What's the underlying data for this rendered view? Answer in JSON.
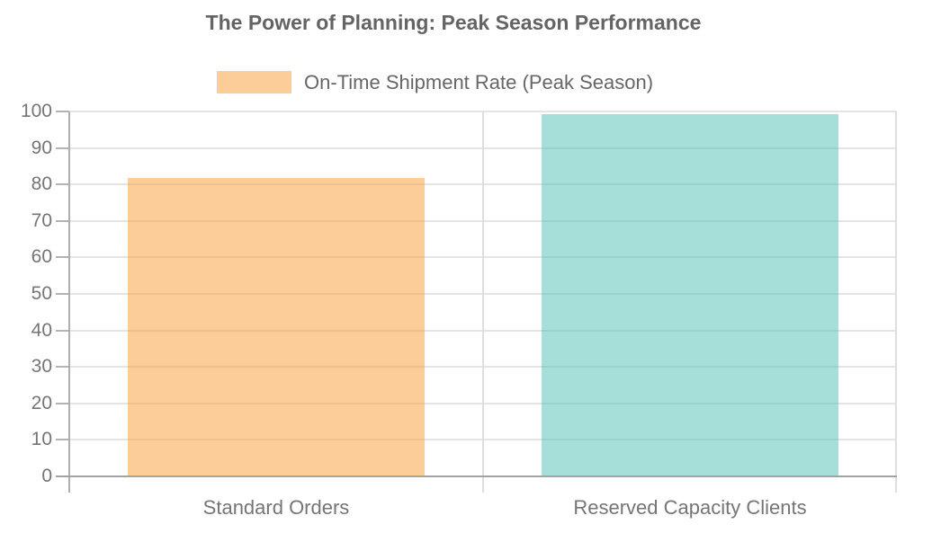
{
  "chart_data": {
    "type": "bar",
    "title": "The Power of Planning: Peak Season Performance",
    "categories": [
      "Standard Orders",
      "Reserved Capacity Clients"
    ],
    "series": [
      {
        "name": "On-Time Shipment Rate (Peak Season)",
        "values": [
          82,
          99.5
        ]
      }
    ],
    "xlabel": "",
    "ylabel": "",
    "ylim": [
      0,
      100
    ],
    "yticks": [
      0,
      10,
      20,
      30,
      40,
      50,
      60,
      70,
      80,
      90,
      100
    ],
    "grid": true,
    "legend_position": "top",
    "bar_colors": [
      "rgba(249,153,51,0.5)",
      "rgba(77,191,181,0.5)"
    ]
  },
  "legend": {
    "label": "On-Time Shipment Rate (Peak Season)",
    "swatch_color": "#fccc99"
  },
  "colors": {
    "grid": "#e4e4e4",
    "axis": "#aeaeae",
    "tick_label": "#757575",
    "title_text": "#646464",
    "legend_text": "#666666",
    "bar_standard": "#fccc99",
    "bar_reserved": "#a6dfda"
  }
}
